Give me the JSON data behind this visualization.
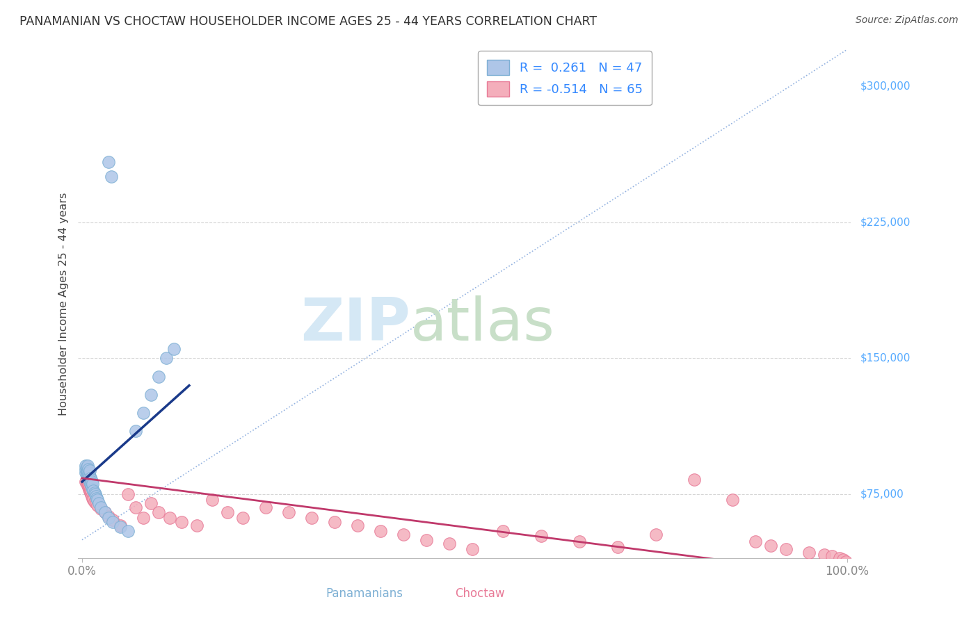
{
  "title": "PANAMANIAN VS CHOCTAW HOUSEHOLDER INCOME AGES 25 - 44 YEARS CORRELATION CHART",
  "source": "Source: ZipAtlas.com",
  "ylabel": "Householder Income Ages 25 - 44 years",
  "legend_label1": "Panamanians",
  "legend_label2": "Choctaw",
  "R1": "0.261",
  "N1": "47",
  "R2": "-0.514",
  "N2": "65",
  "ytick_vals": [
    75000,
    150000,
    225000,
    300000
  ],
  "ytick_labels": [
    "$75,000",
    "$150,000",
    "$225,000",
    "$300,000"
  ],
  "xtick_vals": [
    0.0,
    1.0
  ],
  "xtick_labels": [
    "0.0%",
    "100.0%"
  ],
  "blue_dot_color": "#AEC6E8",
  "blue_dot_edge": "#7EB0D4",
  "pink_dot_color": "#F4AEBB",
  "pink_dot_edge": "#E87A97",
  "blue_line_color": "#1A3A8A",
  "pink_line_color": "#C0396B",
  "diag_line_color": "#88AADD",
  "grid_color": "#CCCCCC",
  "title_color": "#333333",
  "source_color": "#555555",
  "axis_tick_color": "#888888",
  "right_label_color": "#55AAFF",
  "watermark_zip_color": "#D5E8F5",
  "watermark_atlas_color": "#C8DFC8",
  "background": "#FFFFFF",
  "xlim_min": -0.005,
  "xlim_max": 1.005,
  "ylim_min": 40000,
  "ylim_max": 320000,
  "blue_x": [
    0.005,
    0.005,
    0.005,
    0.006,
    0.006,
    0.006,
    0.007,
    0.007,
    0.007,
    0.007,
    0.008,
    0.008,
    0.008,
    0.009,
    0.009,
    0.01,
    0.01,
    0.01,
    0.011,
    0.011,
    0.012,
    0.012,
    0.013,
    0.013,
    0.014,
    0.014,
    0.015,
    0.016,
    0.017,
    0.018,
    0.019,
    0.02,
    0.022,
    0.025,
    0.03,
    0.035,
    0.04,
    0.05,
    0.06,
    0.07,
    0.08,
    0.09,
    0.1,
    0.11,
    0.12,
    0.035,
    0.038
  ],
  "blue_y": [
    87000,
    89000,
    91000,
    86000,
    88000,
    90000,
    85000,
    87000,
    88000,
    91000,
    84000,
    86000,
    89000,
    83000,
    87000,
    82000,
    85000,
    88000,
    81000,
    84000,
    80000,
    83000,
    79000,
    82000,
    78000,
    81000,
    77000,
    76000,
    75000,
    74000,
    73000,
    72000,
    70000,
    68000,
    65000,
    62000,
    60000,
    57000,
    55000,
    110000,
    120000,
    130000,
    140000,
    150000,
    155000,
    258000,
    250000
  ],
  "pink_x": [
    0.005,
    0.006,
    0.006,
    0.007,
    0.007,
    0.007,
    0.008,
    0.008,
    0.008,
    0.009,
    0.009,
    0.01,
    0.01,
    0.011,
    0.011,
    0.012,
    0.012,
    0.013,
    0.014,
    0.015,
    0.016,
    0.018,
    0.02,
    0.025,
    0.03,
    0.035,
    0.04,
    0.05,
    0.06,
    0.07,
    0.08,
    0.09,
    0.1,
    0.115,
    0.13,
    0.15,
    0.17,
    0.19,
    0.21,
    0.24,
    0.27,
    0.3,
    0.33,
    0.36,
    0.39,
    0.42,
    0.45,
    0.48,
    0.51,
    0.55,
    0.6,
    0.65,
    0.7,
    0.75,
    0.8,
    0.85,
    0.88,
    0.9,
    0.92,
    0.95,
    0.97,
    0.98,
    0.99,
    0.995,
    0.998
  ],
  "pink_y": [
    82000,
    81000,
    83000,
    80000,
    82000,
    84000,
    79000,
    81000,
    83000,
    78000,
    80000,
    77000,
    79000,
    76000,
    78000,
    75000,
    77000,
    74000,
    73000,
    72000,
    71000,
    70000,
    69000,
    67000,
    65000,
    63000,
    61000,
    58000,
    75000,
    68000,
    62000,
    70000,
    65000,
    62000,
    60000,
    58000,
    72000,
    65000,
    62000,
    68000,
    65000,
    62000,
    60000,
    58000,
    55000,
    53000,
    50000,
    48000,
    45000,
    55000,
    52000,
    49000,
    46000,
    53000,
    83000,
    72000,
    49000,
    47000,
    45000,
    43000,
    42000,
    41000,
    40000,
    39000,
    38000
  ]
}
